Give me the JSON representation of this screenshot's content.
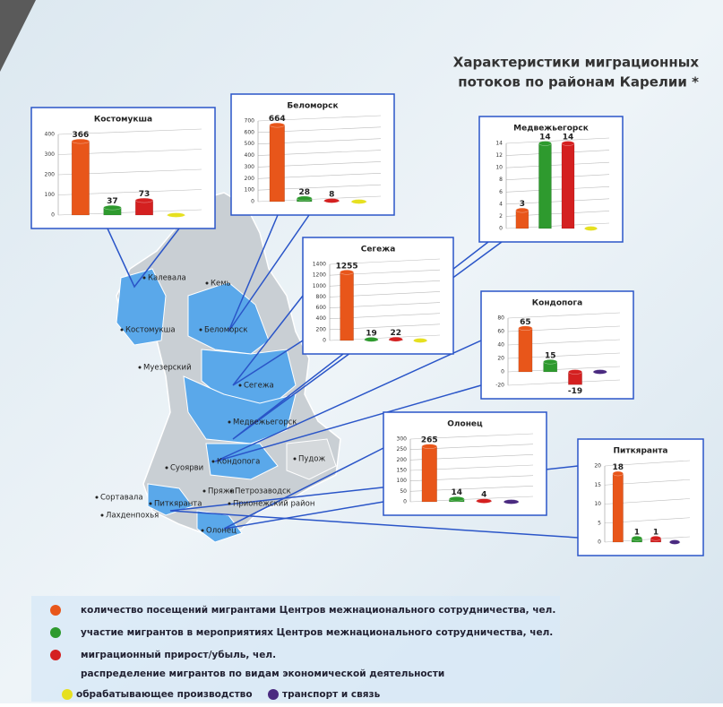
{
  "title": [
    "Характеристики миграционных",
    "потоков по районам Карелии *"
  ],
  "chart_data": [
    {
      "type": "bar",
      "title": "Костомукша",
      "values": [
        366,
        37,
        73,
        0
      ],
      "value_labels": [
        "366",
        "37",
        "73",
        null
      ],
      "colors": [
        "#e8561a",
        "#2e9a2e",
        "#d42020",
        "#e6e020"
      ],
      "ylim": [
        0,
        400
      ],
      "yticks": [
        0,
        100,
        200,
        300,
        400
      ]
    },
    {
      "type": "bar",
      "title": "Беломорск",
      "values": [
        664,
        28,
        8,
        0
      ],
      "value_labels": [
        "664",
        "28",
        "8",
        null
      ],
      "colors": [
        "#e8561a",
        "#2e9a2e",
        "#d42020",
        "#e6e020"
      ],
      "ylim": [
        0,
        700
      ],
      "yticks": [
        0,
        100,
        200,
        300,
        400,
        500,
        600,
        700
      ]
    },
    {
      "type": "bar",
      "title": "Медвежьегорск",
      "values": [
        3,
        14,
        14,
        0
      ],
      "value_labels": [
        "3",
        "14",
        "14",
        null
      ],
      "colors": [
        "#e8561a",
        "#2e9a2e",
        "#d42020",
        "#e6e020"
      ],
      "ylim": [
        0,
        14
      ],
      "yticks": [
        0,
        2,
        4,
        6,
        8,
        10,
        12,
        14
      ]
    },
    {
      "type": "bar",
      "title": "Сегежа",
      "values": [
        1255,
        19,
        22,
        0
      ],
      "value_labels": [
        "1255",
        "19",
        "22",
        null
      ],
      "colors": [
        "#e8561a",
        "#2e9a2e",
        "#d42020",
        "#e6e020"
      ],
      "ylim": [
        0,
        1400
      ],
      "yticks": [
        0,
        200,
        400,
        600,
        800,
        1000,
        1200,
        1400
      ]
    },
    {
      "type": "bar",
      "title": "Кондопога",
      "values": [
        65,
        15,
        -19,
        0
      ],
      "value_labels": [
        "65",
        "15",
        "-19",
        null
      ],
      "colors": [
        "#e8561a",
        "#2e9a2e",
        "#d42020",
        "#4a2a80"
      ],
      "ylim": [
        -20,
        80
      ],
      "yticks": [
        -20,
        0,
        20,
        40,
        60,
        80
      ]
    },
    {
      "type": "bar",
      "title": "Олонец",
      "values": [
        265,
        14,
        4,
        0
      ],
      "value_labels": [
        "265",
        "14",
        "4",
        null
      ],
      "colors": [
        "#e8561a",
        "#2e9a2e",
        "#d42020",
        "#4a2a80"
      ],
      "ylim": [
        0,
        300
      ],
      "yticks": [
        0,
        50,
        100,
        150,
        200,
        250,
        300
      ]
    },
    {
      "type": "bar",
      "title": "Питкяранта",
      "values": [
        18,
        1,
        1,
        0
      ],
      "value_labels": [
        "18",
        "1",
        "1",
        null
      ],
      "colors": [
        "#e8561a",
        "#2e9a2e",
        "#d42020",
        "#4a2a80"
      ],
      "ylim": [
        0,
        20
      ],
      "yticks": [
        0,
        5,
        10,
        15,
        20
      ]
    }
  ],
  "map": {
    "labels": [
      "Калевала",
      "Кемь",
      "Костомукша",
      "Беломорск",
      "Муезерский",
      "Сегежа",
      "Медвежьегорск",
      "Кондопога",
      "Пудож",
      "Суоярви",
      "Петрозаводск",
      "Пряжа",
      "Сортавала",
      "Питкяранта",
      "Прионежский район",
      "Лахденпохья",
      "Олонец"
    ]
  },
  "legend": {
    "items": [
      {
        "label": "количество посещений мигрантами Центров межнационального сотрудничества, чел.",
        "color": "#e8561a"
      },
      {
        "label": "участие мигрантов в мероприятиях Центров межнационального сотрудничества, чел.",
        "color": "#2e9a2e"
      },
      {
        "label": "миграционный прирост/убыль, чел.",
        "color": "#d42020"
      }
    ],
    "subheading": "распределение мигрантов по видам экономической деятельности",
    "subitems": [
      {
        "label": "обрабатывающее производство",
        "color": "#e6e020"
      },
      {
        "label": "транспорт и связь",
        "color": "#4a2a80"
      }
    ]
  }
}
